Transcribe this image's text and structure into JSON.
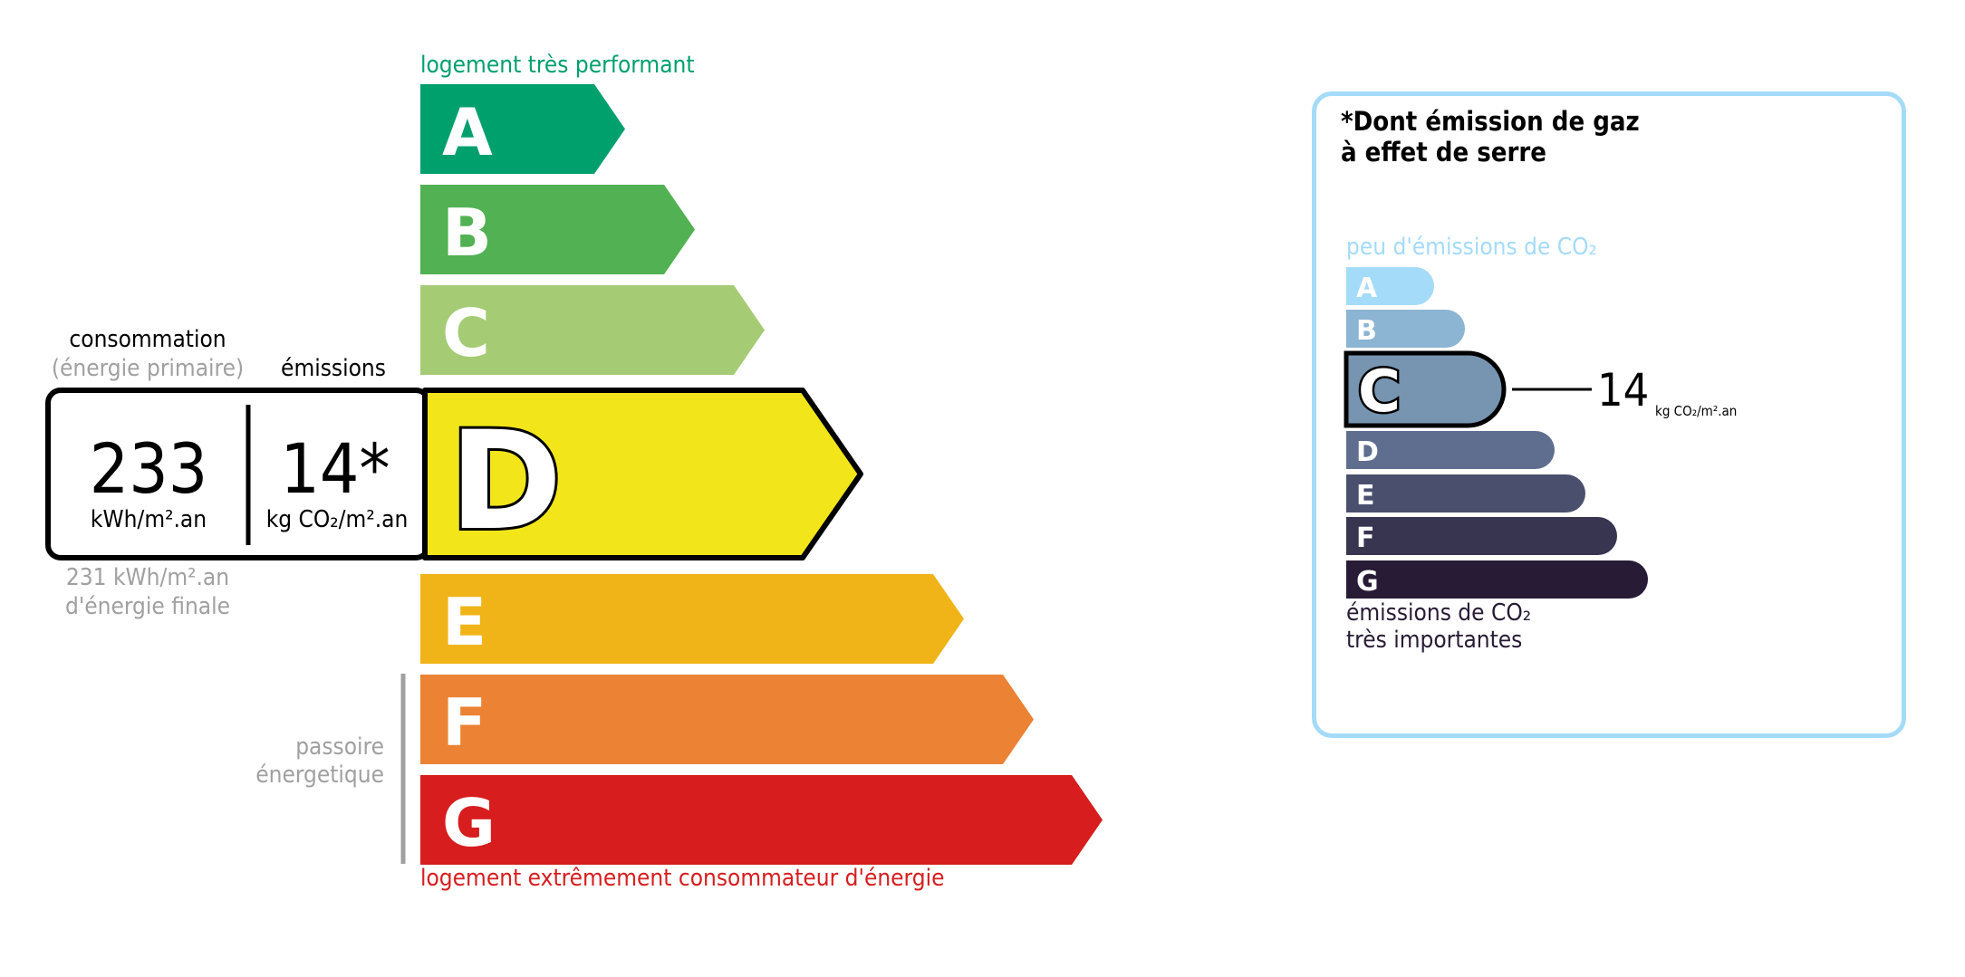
{
  "energy": {
    "top_label": "logement très performant",
    "bottom_label": "logement extrêmement consommateur d'énergie",
    "passoire_label_1": "passoire",
    "passoire_label_2": "énergetique",
    "current_class": "D",
    "classes": [
      {
        "letter": "A",
        "color": "#00a06d"
      },
      {
        "letter": "B",
        "color": "#51b153"
      },
      {
        "letter": "C",
        "color": "#a5cc74"
      },
      {
        "letter": "D",
        "color": "#f2e61a"
      },
      {
        "letter": "E",
        "color": "#f0b418"
      },
      {
        "letter": "F",
        "color": "#eb8234"
      },
      {
        "letter": "G",
        "color": "#d71d1e"
      }
    ],
    "consumption_header": "consommation",
    "consumption_subheader": "(énergie primaire)",
    "emissions_header": "émissions",
    "consumption_value": "233",
    "consumption_unit": "kWh/m².an",
    "emissions_value": "14*",
    "emissions_unit": "kg CO₂/m².an",
    "final_energy_value": "231 kWh/m².an",
    "final_energy_label": "d'énergie finale"
  },
  "ges": {
    "title_1": "*Dont émission de gaz",
    "title_2": "à effet de serre",
    "top_label": "peu d'émissions de CO₂",
    "bottom_label_1": "émissions de CO₂",
    "bottom_label_2": "très importantes",
    "current_class": "C",
    "value": "14",
    "unit": "kg CO₂/m².an",
    "border_color": "#a4dbf8",
    "classes": [
      {
        "letter": "A",
        "color": "#a4dbf8"
      },
      {
        "letter": "B",
        "color": "#8cb4d3"
      },
      {
        "letter": "C",
        "color": "#7794b1"
      },
      {
        "letter": "D",
        "color": "#5f6d8f"
      },
      {
        "letter": "E",
        "color": "#4b4f6e"
      },
      {
        "letter": "F",
        "color": "#383551"
      },
      {
        "letter": "G",
        "color": "#281b35"
      }
    ]
  }
}
